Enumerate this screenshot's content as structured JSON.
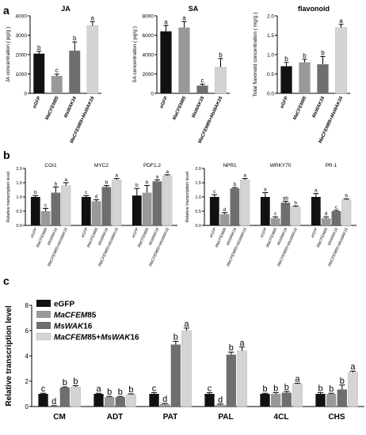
{
  "panels": {
    "a": "a",
    "b": "b",
    "c": "c"
  },
  "colors": {
    "egfp": "#111111",
    "macfem85": "#999999",
    "mswak16": "#6e6e6e",
    "combo": "#d4d4d4"
  },
  "chart_data": [
    {
      "type": "bar",
      "panel": "a",
      "title": "JA",
      "ylabel": "JA concentration ( pg/g )",
      "ylim": [
        0,
        4000
      ],
      "yticks": [
        "0",
        "1000",
        "2000",
        "3000",
        "4000"
      ],
      "categories": [
        "eGFP",
        "MaCFEM85",
        "MsWAK16",
        "MaCFEM85+MsWAK16"
      ],
      "values": [
        2050,
        900,
        2200,
        3500
      ],
      "errors": [
        120,
        90,
        450,
        200
      ],
      "letters": [
        "b",
        "c",
        "b",
        "a"
      ]
    },
    {
      "type": "bar",
      "panel": "a",
      "title": "SA",
      "ylabel": "SA concentration ( pg/g )",
      "ylim": [
        0,
        8000
      ],
      "yticks": [
        "0",
        "2000",
        "4000",
        "6000",
        "8000"
      ],
      "categories": [
        "eGFP",
        "MaCFEM85",
        "MsWAK16",
        "MaCFEM85+MsWAK16"
      ],
      "values": [
        6400,
        6800,
        800,
        2700
      ],
      "errors": [
        600,
        600,
        150,
        900
      ],
      "letters": [
        "a",
        "a",
        "c",
        "b"
      ]
    },
    {
      "type": "bar",
      "panel": "a",
      "title": "flavonoid",
      "ylabel": "Total flavonoid concentration ( mg/g )",
      "ylim": [
        0,
        2.0
      ],
      "yticks": [
        "0.0",
        "0.5",
        "1.0",
        "1.5",
        "2.0"
      ],
      "categories": [
        "eGFP",
        "MaCFEM85",
        "MsWAK16",
        "MaCFEM85+MsWAK16"
      ],
      "values": [
        0.7,
        0.8,
        0.75,
        1.7
      ],
      "errors": [
        0.1,
        0.08,
        0.2,
        0.08
      ],
      "letters": [
        "b",
        "b",
        "b",
        "a"
      ]
    },
    {
      "type": "bar",
      "panel": "b",
      "ylabel": "Relative transcription level",
      "ylim": [
        0,
        2.0
      ],
      "yticks": [
        "0.0",
        "0.5",
        "1.0",
        "1.5",
        "2.0"
      ],
      "groups": [
        "COI1",
        "MYC2",
        "PDF1.2"
      ],
      "series": [
        {
          "name": "eGFP",
          "values": [
            1.0,
            1.0,
            1.05
          ],
          "errors": [
            0.05,
            0.05,
            0.25
          ],
          "letters": [
            "b",
            "c",
            "b"
          ]
        },
        {
          "name": "MaCFEM85",
          "values": [
            0.5,
            0.85,
            1.15
          ],
          "errors": [
            0.1,
            0.05,
            0.25
          ],
          "letters": [
            "c",
            "d",
            "b"
          ]
        },
        {
          "name": "MsWAK16",
          "values": [
            1.15,
            1.35,
            1.55
          ],
          "errors": [
            0.2,
            0.05,
            0.05
          ],
          "letters": [
            "b",
            "b",
            "a"
          ]
        },
        {
          "name": "MaCFEM85+MsWAK16",
          "values": [
            1.4,
            1.6,
            1.75
          ],
          "errors": [
            0.1,
            0.05,
            0.03
          ],
          "letters": [
            "a",
            "a",
            "a"
          ]
        }
      ]
    },
    {
      "type": "bar",
      "panel": "b",
      "ylabel": "Relative transcription level",
      "ylim": [
        0,
        2.0
      ],
      "yticks": [
        "0.0",
        "0.5",
        "1.0",
        "1.5",
        "2.0"
      ],
      "groups": [
        "NPR1",
        "WRKY70",
        "PR-1"
      ],
      "series": [
        {
          "name": "eGFP",
          "values": [
            1.0,
            1.0,
            1.0
          ],
          "errors": [
            0.08,
            0.15,
            0.12
          ],
          "letters": [
            "c",
            "a",
            "a"
          ]
        },
        {
          "name": "MaCFEM85",
          "values": [
            0.4,
            0.25,
            0.25
          ],
          "errors": [
            0.05,
            0.05,
            0.05
          ],
          "letters": [
            "d",
            "c",
            "d"
          ]
        },
        {
          "name": "MsWAK16",
          "values": [
            1.3,
            0.8,
            0.5
          ],
          "errors": [
            0.03,
            0.05,
            0.03
          ],
          "letters": [
            "b",
            "ab",
            "c"
          ]
        },
        {
          "name": "MaCFEM85+MsWAK16",
          "values": [
            1.6,
            0.65,
            0.9
          ],
          "errors": [
            0.05,
            0.03,
            0.03
          ],
          "letters": [
            "a",
            "b",
            "b"
          ]
        }
      ]
    },
    {
      "type": "bar",
      "panel": "c",
      "ylabel": "Relative transcription level",
      "ylim": [
        0,
        8
      ],
      "yticks": [
        "0",
        "2",
        "4",
        "6",
        "8"
      ],
      "groups": [
        "CM",
        "ADT",
        "PAT",
        "PAL",
        "4CL",
        "CHS"
      ],
      "legend": [
        {
          "pre": "eGFP",
          "it1": "",
          "mid": "",
          "it2": "",
          "post": ""
        },
        {
          "pre": "",
          "it1": "MaCFEM",
          "mid": "85",
          "it2": "",
          "post": ""
        },
        {
          "pre": "",
          "it1": "MsWAK",
          "mid": "16",
          "it2": "",
          "post": ""
        },
        {
          "pre": "",
          "it1": "MaCFEM",
          "mid": "85+",
          "it2": "MsWAK",
          "post": "16"
        }
      ],
      "series": [
        {
          "name": "eGFP",
          "values": [
            1.0,
            1.0,
            1.0,
            1.0,
            1.0,
            1.0
          ],
          "errors": [
            0.05,
            0.05,
            0.1,
            0.1,
            0.05,
            0.1
          ],
          "letters": [
            "c",
            "a",
            "c",
            "c",
            "b",
            "b"
          ]
        },
        {
          "name": "MaCFEM85",
          "values": [
            0.05,
            0.75,
            0.2,
            0.15,
            1.0,
            1.0
          ],
          "errors": [
            0.02,
            0.05,
            0.05,
            0.05,
            0.1,
            0.05
          ],
          "letters": [
            "d",
            "b",
            "d",
            "d",
            "b",
            "b"
          ]
        },
        {
          "name": "MsWAK16",
          "values": [
            1.5,
            0.75,
            4.9,
            4.1,
            1.1,
            1.35
          ],
          "errors": [
            0.05,
            0.05,
            0.25,
            0.2,
            0.1,
            0.35
          ],
          "letters": [
            "b",
            "b",
            "b",
            "b",
            "b",
            "b"
          ]
        },
        {
          "name": "MaCFEM85+MsWAK16",
          "values": [
            1.55,
            0.95,
            6.0,
            4.4,
            1.8,
            2.7
          ],
          "errors": [
            0.1,
            0.05,
            0.2,
            0.3,
            0.05,
            0.1
          ],
          "letters": [
            "b",
            "b",
            "a",
            "a",
            "a",
            "a"
          ]
        }
      ]
    }
  ]
}
